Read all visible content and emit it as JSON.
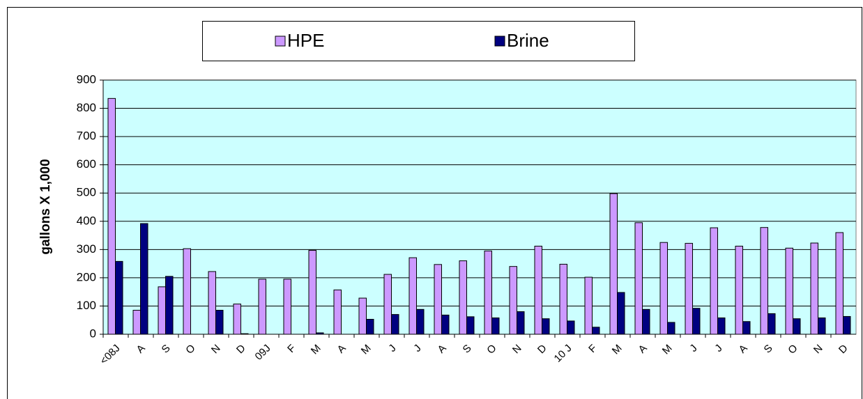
{
  "chart_data": {
    "type": "bar",
    "y_label": "gallons X 1,000",
    "categories": [
      "<08J",
      "A",
      "S",
      "O",
      "N",
      "D",
      "09J",
      "F",
      "M",
      "A",
      "M",
      "J",
      "J",
      "A",
      "S",
      "O",
      "N",
      "D",
      "10 J",
      "F",
      "M",
      "A",
      "M",
      "J",
      "J",
      "A",
      "S",
      "O",
      "N",
      "D"
    ],
    "series": [
      {
        "name": "HPE",
        "color": "#cc99ff",
        "values": [
          835,
          85,
          168,
          303,
          222,
          107,
          195,
          195,
          297,
          157,
          128,
          212,
          271,
          247,
          260,
          295,
          240,
          312,
          248,
          202,
          498,
          395,
          325,
          322,
          377,
          312,
          378,
          305,
          323,
          360
        ]
      },
      {
        "name": "Brine",
        "color": "#000080",
        "values": [
          258,
          392,
          205,
          0,
          85,
          2,
          0,
          0,
          5,
          0,
          53,
          70,
          88,
          68,
          62,
          58,
          80,
          55,
          47,
          25,
          148,
          88,
          42,
          92,
          58,
          45,
          73,
          55,
          58,
          63
        ]
      }
    ],
    "ylim": [
      0,
      900
    ],
    "yticks": [
      0,
      100,
      200,
      300,
      400,
      500,
      600,
      700,
      800,
      900
    ],
    "grid": true,
    "legend": "top"
  }
}
